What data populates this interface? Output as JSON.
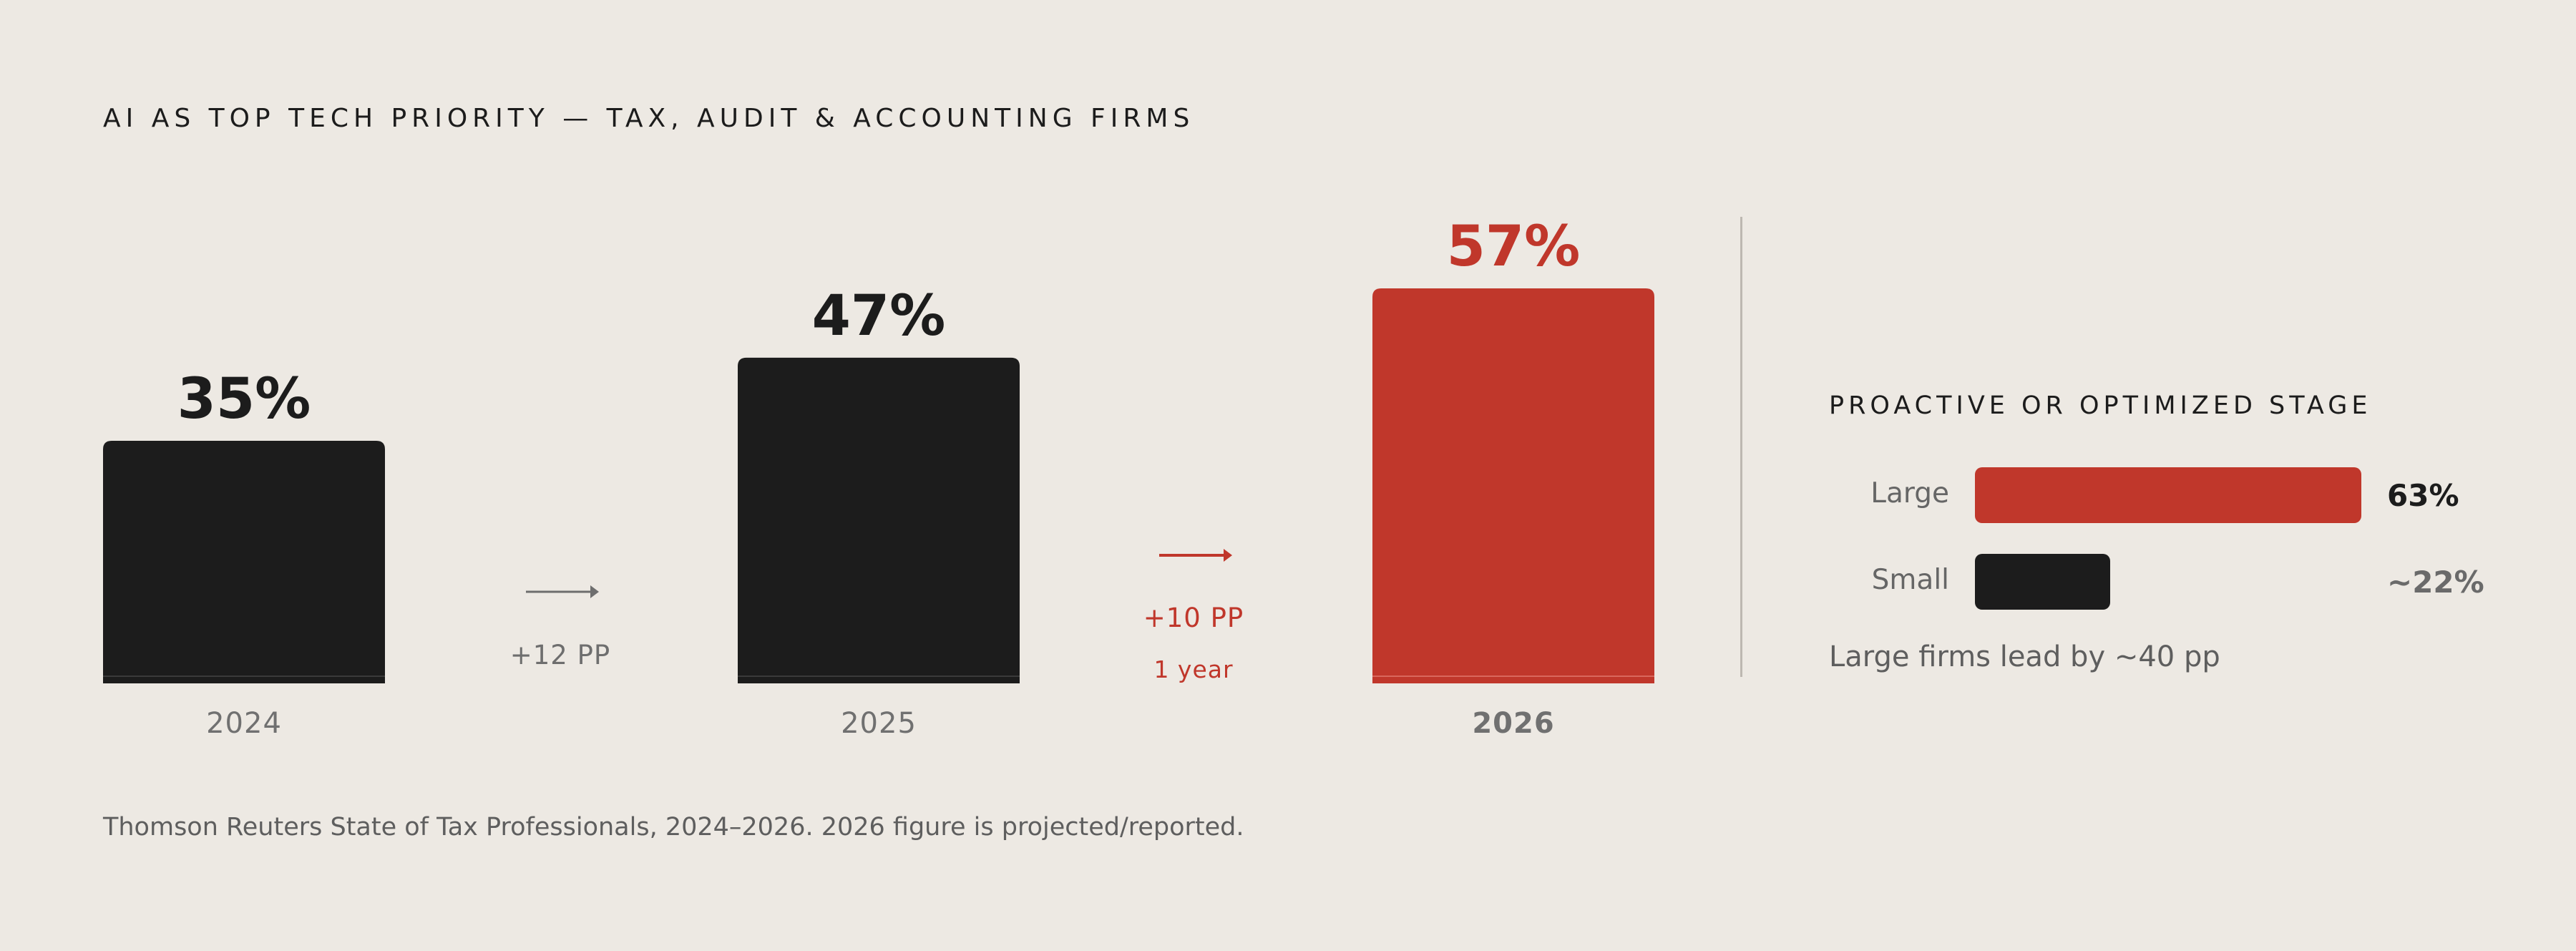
{
  "title": "AI AS TOP TECH PRIORITY — TAX, AUDIT & ACCOUNTING FIRMS",
  "colors": {
    "background": "#EDE9E3",
    "dark": "#1C1C1C",
    "accent": "#C0372B",
    "muted": "#707070"
  },
  "chart_data": [
    {
      "type": "bar",
      "categories": [
        "2024",
        "2025",
        "2026"
      ],
      "values": [
        35,
        47,
        57
      ],
      "value_labels": [
        "35%",
        "47%",
        "57%"
      ],
      "ylim": [
        0,
        57
      ],
      "highlight": "2026",
      "deltas": [
        {
          "label": "+12 PP",
          "sub": ""
        },
        {
          "label": "+10 PP",
          "sub": "1 year"
        }
      ]
    },
    {
      "type": "bar",
      "orientation": "horizontal",
      "title": "PROACTIVE OR OPTIMIZED STAGE",
      "categories": [
        "Large",
        "Small"
      ],
      "values": [
        63,
        22
      ],
      "value_labels": [
        "63%",
        "~22%"
      ]
    }
  ],
  "side_note": "Large firms lead by ~40 pp",
  "footnote": "Thomson Reuters State of Tax Professionals, 2024–2026. 2026 figure is projected/reported."
}
